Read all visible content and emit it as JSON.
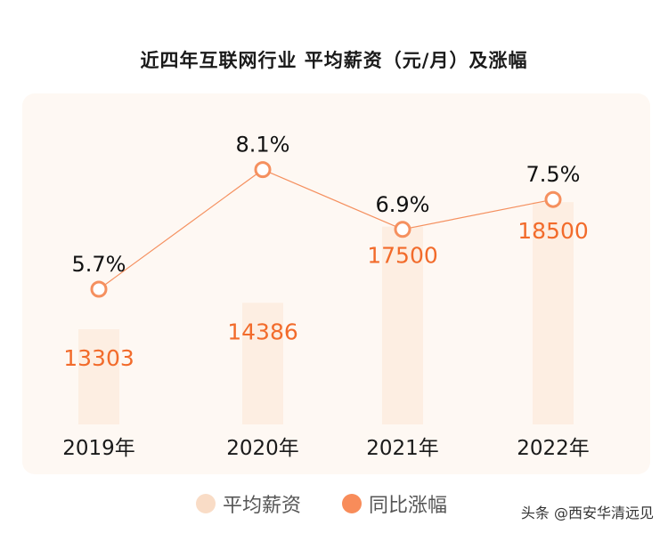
{
  "chart_data": {
    "type": "bar+line",
    "title": "近四年互联网行业 平均薪资（元/月）及涨幅",
    "categories": [
      "2019年",
      "2020年",
      "2021年",
      "2022年"
    ],
    "series": [
      {
        "name": "平均薪资",
        "type": "bar",
        "values": [
          13303,
          14386,
          17500,
          18500
        ],
        "color": "#fdeee2",
        "label_color": "#f26b2b"
      },
      {
        "name": "同比涨幅",
        "type": "line",
        "values": [
          5.7,
          8.1,
          6.9,
          7.5
        ],
        "labels": [
          "5.7%",
          "8.1%",
          "6.9%",
          "7.5%"
        ],
        "color": "#f5905f"
      }
    ],
    "grid": false,
    "legend": "bottom"
  },
  "legend": {
    "items": [
      {
        "label": "平均薪资",
        "color": "#f9dcc6"
      },
      {
        "label": "同比涨幅",
        "color": "#f88c5a"
      }
    ]
  },
  "watermark": "头条 @西安华清远见"
}
